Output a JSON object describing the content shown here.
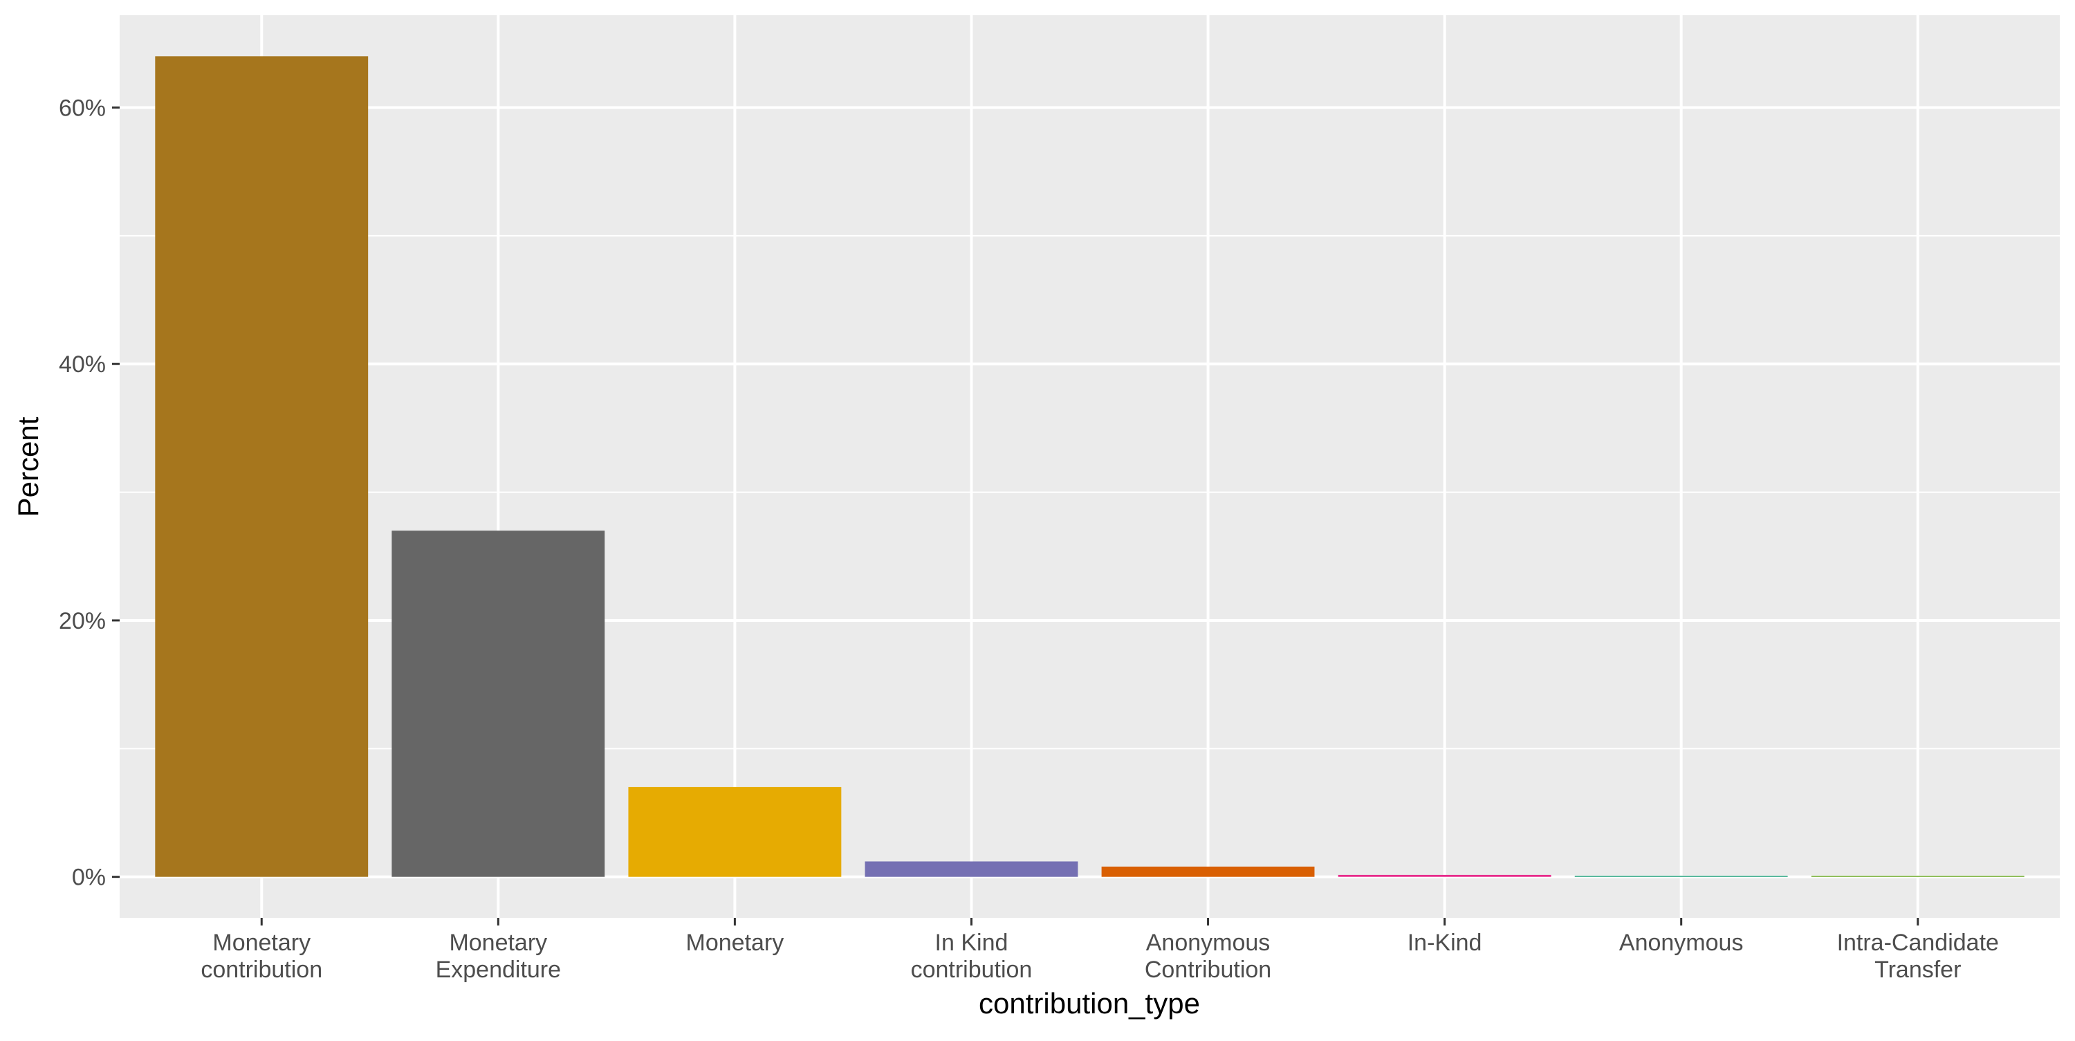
{
  "chart_data": {
    "type": "bar",
    "title": "",
    "xlabel": "contribution_type",
    "ylabel": "Percent",
    "categories": [
      "Monetary\ncontribution",
      "Monetary\nExpenditure",
      "Monetary",
      "In Kind\ncontribution",
      "Anonymous\nContribution",
      "In-Kind",
      "Anonymous",
      "Intra-Candidate\nTransfer"
    ],
    "values": [
      64.0,
      27.0,
      7.0,
      1.2,
      0.8,
      0.15,
      0.08,
      0.01
    ],
    "colors": [
      "#A6761D",
      "#666666",
      "#E6AB02",
      "#7570B3",
      "#D95F02",
      "#E7298A",
      "#1B9E77",
      "#66A61E"
    ],
    "ylim": [
      -3.2,
      67.2
    ],
    "yticks": [
      0,
      20,
      40,
      60
    ],
    "ytick_labels": [
      "0%",
      "20%",
      "40%",
      "60%"
    ],
    "grid": true,
    "legend": "none",
    "panel_background": "#EBEBEB",
    "grid_color": "#FFFFFF"
  }
}
